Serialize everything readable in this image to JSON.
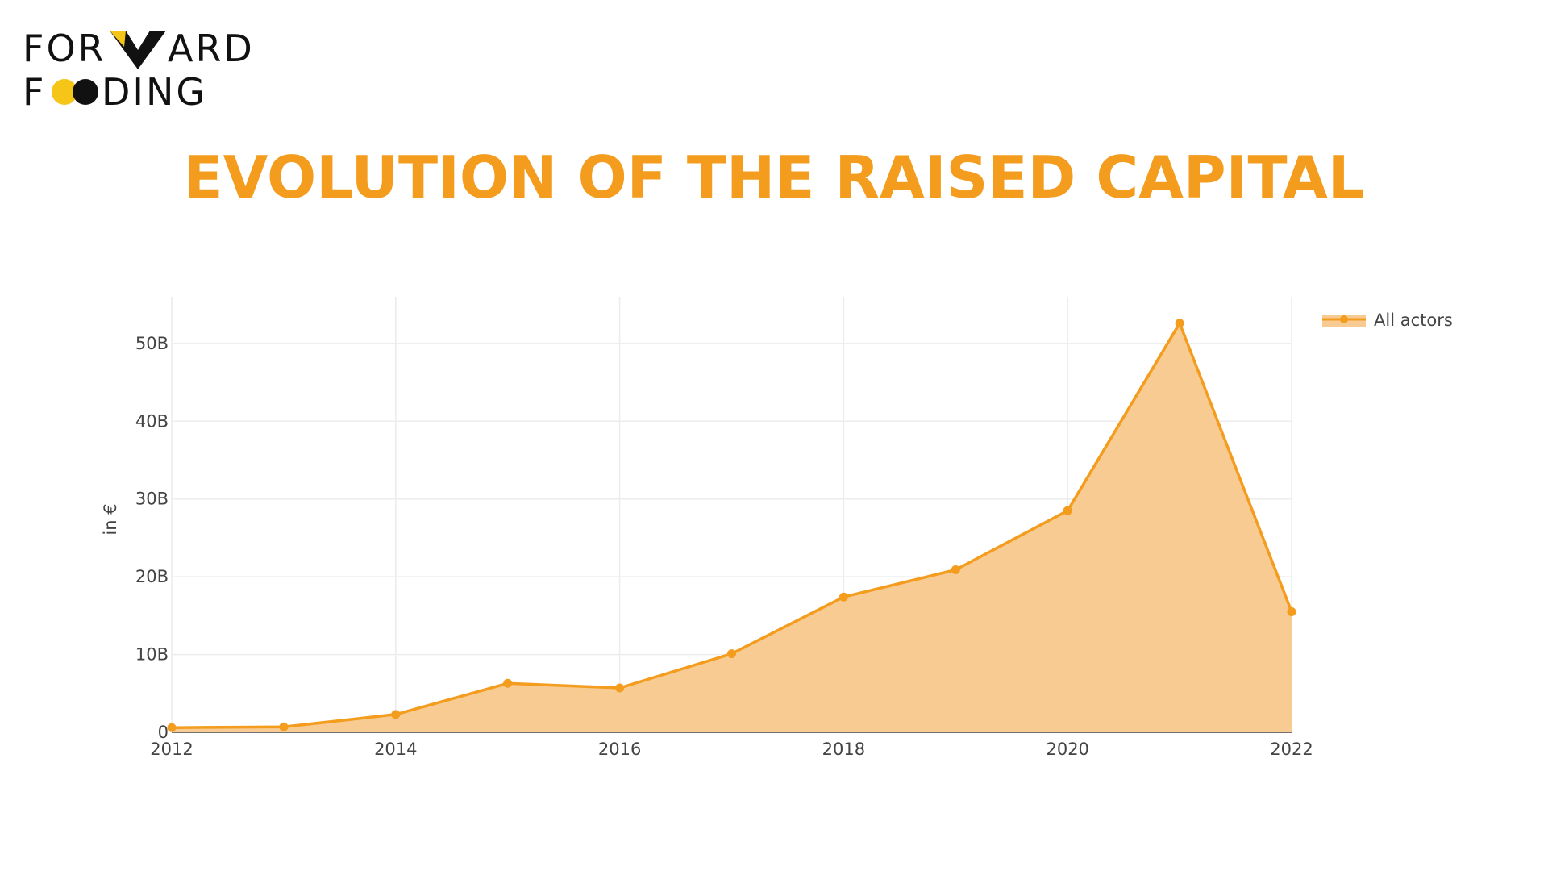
{
  "logo": {
    "line1_part1": "FOR",
    "line1_part2": "ARD",
    "line2_part1": "F",
    "line2_part2": "DING",
    "colors": {
      "text": "#111111",
      "yellow": "#f5c518",
      "black": "#111111"
    },
    "icons": [
      "w-chevron-icon",
      "double-circle-icon"
    ]
  },
  "page": {
    "title": "EVOLUTION OF THE RAISED CAPITAL",
    "title_color": "#f39c1e"
  },
  "chart_data": {
    "type": "area",
    "title": "",
    "xlabel": "",
    "ylabel": "in €",
    "x": [
      2012,
      2013,
      2014,
      2015,
      2016,
      2017,
      2018,
      2019,
      2020,
      2021,
      2022
    ],
    "series": [
      {
        "name": "All actors",
        "values": [
          600000000.0,
          700000000.0,
          2300000000.0,
          6300000000.0,
          5700000000.0,
          10100000000.0,
          17400000000.0,
          20900000000.0,
          28500000000.0,
          52600000000.0,
          15500000000.0
        ],
        "color": "#f39c1e",
        "fill": "#f8cb92"
      }
    ],
    "xlim": [
      2012,
      2022
    ],
    "ylim": [
      0,
      56000000000.0
    ],
    "xticks": [
      2012,
      2014,
      2016,
      2018,
      2020,
      2022
    ],
    "xtick_labels": [
      "2012",
      "2014",
      "2016",
      "2018",
      "2020",
      "2022"
    ],
    "yticks": [
      0,
      10000000000.0,
      20000000000.0,
      30000000000.0,
      40000000000.0,
      50000000000.0
    ],
    "ytick_labels": [
      "0",
      "10B",
      "20B",
      "30B",
      "40B",
      "50B"
    ],
    "grid": true,
    "legend_position": "top-right"
  }
}
